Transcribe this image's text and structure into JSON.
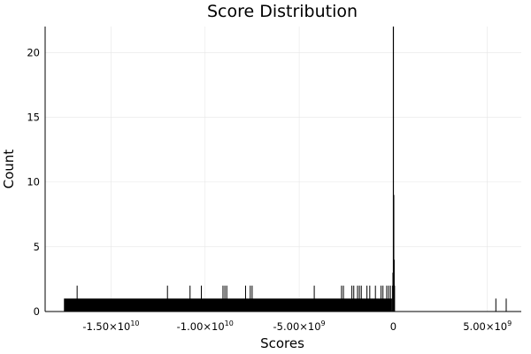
{
  "chart_data": {
    "type": "histogram",
    "title": "Score Distribution",
    "xlabel": "Scores",
    "ylabel": "Count",
    "xlim": [
      -18500000000.0,
      6800000000.0
    ],
    "ylim": [
      0,
      22
    ],
    "grid": true,
    "legend": "none",
    "bar_color": "#000000",
    "x_ticks": [
      {
        "value": -15000000000.0,
        "mantissa": "-1.50×10",
        "exp": "10"
      },
      {
        "value": -10000000000.0,
        "mantissa": "-1.00×10",
        "exp": "10"
      },
      {
        "value": -5000000000.0,
        "mantissa": "-5.00×10",
        "exp": "9"
      },
      {
        "value": 0,
        "mantissa": "0",
        "exp": ""
      },
      {
        "value": 5000000000.0,
        "mantissa": "5.00×10",
        "exp": "9"
      }
    ],
    "y_ticks": [
      0,
      5,
      10,
      15,
      20
    ],
    "dense_bins": {
      "x_start": -17500000000.0,
      "x_end": -70000000.0,
      "count": 1
    },
    "spike_bins": [
      {
        "x": -16800000000.0,
        "count": 2
      },
      {
        "x": -12000000000.0,
        "count": 2
      },
      {
        "x": -10800000000.0,
        "count": 2
      },
      {
        "x": -10200000000.0,
        "count": 2
      },
      {
        "x": -9050000000.0,
        "count": 2
      },
      {
        "x": -8950000000.0,
        "count": 2
      },
      {
        "x": -8850000000.0,
        "count": 2
      },
      {
        "x": -7850000000.0,
        "count": 2
      },
      {
        "x": -7600000000.0,
        "count": 2
      },
      {
        "x": -7500000000.0,
        "count": 2
      },
      {
        "x": -4200000000.0,
        "count": 2
      },
      {
        "x": -2750000000.0,
        "count": 2
      },
      {
        "x": -2650000000.0,
        "count": 2
      },
      {
        "x": -2200000000.0,
        "count": 2
      },
      {
        "x": -2100000000.0,
        "count": 2
      },
      {
        "x": -1900000000.0,
        "count": 2
      },
      {
        "x": -1800000000.0,
        "count": 2
      },
      {
        "x": -1700000000.0,
        "count": 2
      },
      {
        "x": -1400000000.0,
        "count": 2
      },
      {
        "x": -1250000000.0,
        "count": 2
      },
      {
        "x": -950000000.0,
        "count": 2
      },
      {
        "x": -650000000.0,
        "count": 2
      },
      {
        "x": -550000000.0,
        "count": 2
      },
      {
        "x": -350000000.0,
        "count": 2
      },
      {
        "x": -250000000.0,
        "count": 2
      },
      {
        "x": -150000000.0,
        "count": 2
      },
      {
        "x": 5450000000.0,
        "count": 1
      },
      {
        "x": 6000000000.0,
        "count": 1
      }
    ],
    "peak_bins": [
      {
        "x": 0,
        "count": 22
      },
      {
        "x": 20000000.0,
        "count": 9
      },
      {
        "x": 40000000.0,
        "count": 4
      },
      {
        "x": 60000000.0,
        "count": 2
      },
      {
        "x": -20000000.0,
        "count": 3
      },
      {
        "x": -40000000.0,
        "count": 2
      }
    ]
  }
}
